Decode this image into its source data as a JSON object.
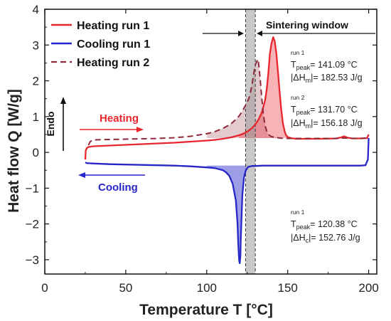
{
  "chart_data": {
    "type": "line",
    "xlabel": "Temperature T [°C]",
    "ylabel": "Heat flow Q [W/g]",
    "xlim": [
      0,
      205
    ],
    "ylim": [
      -3.4,
      4
    ],
    "x_ticks": [
      0,
      50,
      100,
      150,
      200
    ],
    "y_ticks": [
      -3,
      -2,
      -1,
      0,
      1,
      2,
      3,
      4
    ],
    "grid": false,
    "legend": {
      "placement": "top-left",
      "entries": [
        {
          "label": "Heating run 1",
          "color": "#e8262e",
          "style": "solid"
        },
        {
          "label": "Cooling run 1",
          "color": "#2727c9",
          "style": "solid"
        },
        {
          "label": "Heating run 2",
          "color": "#8e2a3a",
          "style": "dashed"
        }
      ]
    },
    "series": [
      {
        "name": "Heating run 1",
        "color": "#e8262e",
        "style": "solid",
        "x": [
          25,
          25.3,
          26,
          27,
          30,
          40,
          50,
          60,
          70,
          80,
          90,
          100,
          105,
          110,
          115,
          120,
          123,
          125,
          128,
          130,
          132,
          134,
          136,
          137,
          138,
          139,
          140,
          141.09,
          142,
          143,
          144,
          145,
          146,
          147,
          148,
          149,
          150,
          152,
          155,
          160,
          170,
          180,
          183,
          185,
          187,
          190,
          195,
          199,
          199.5,
          200
        ],
        "y": [
          -0.2,
          0.05,
          0.12,
          0.15,
          0.17,
          0.19,
          0.21,
          0.23,
          0.25,
          0.27,
          0.3,
          0.33,
          0.35,
          0.38,
          0.42,
          0.48,
          0.53,
          0.58,
          0.68,
          0.78,
          0.92,
          1.12,
          1.45,
          1.75,
          2.2,
          2.75,
          3.05,
          3.22,
          3.1,
          2.75,
          2.25,
          1.7,
          1.2,
          0.82,
          0.6,
          0.48,
          0.43,
          0.4,
          0.38,
          0.38,
          0.38,
          0.39,
          0.42,
          0.45,
          0.41,
          0.39,
          0.39,
          0.4,
          0.45,
          0.5
        ]
      },
      {
        "name": "Cooling run 1",
        "color": "#2727c9",
        "style": "solid",
        "x": [
          200,
          199.5,
          198,
          195,
          190,
          180,
          170,
          160,
          150,
          140,
          135,
          130,
          128,
          126,
          125,
          124,
          123,
          122,
          121.5,
          121,
          120.8,
          120.38,
          120,
          119.5,
          119,
          118,
          116,
          114,
          112,
          110,
          105,
          100,
          90,
          80,
          70,
          60,
          50,
          40,
          30,
          26,
          25
        ],
        "y": [
          0.4,
          -0.2,
          -0.36,
          -0.37,
          -0.37,
          -0.37,
          -0.37,
          -0.37,
          -0.37,
          -0.37,
          -0.37,
          -0.38,
          -0.38,
          -0.4,
          -0.44,
          -0.52,
          -0.7,
          -1.2,
          -1.8,
          -2.5,
          -2.9,
          -3.1,
          -3.02,
          -2.6,
          -2.0,
          -1.35,
          -0.88,
          -0.66,
          -0.56,
          -0.5,
          -0.44,
          -0.42,
          -0.39,
          -0.37,
          -0.36,
          -0.35,
          -0.34,
          -0.33,
          -0.31,
          -0.3,
          -0.28
        ]
      },
      {
        "name": "Heating run 2",
        "color": "#8e2a3a",
        "style": "dashed",
        "x": [
          27,
          28,
          30,
          40,
          50,
          60,
          70,
          80,
          90,
          100,
          105,
          110,
          115,
          118,
          120,
          122,
          124,
          126,
          127,
          128,
          129,
          130,
          131,
          131.7,
          132,
          133,
          134,
          135,
          136,
          137,
          138,
          140,
          145,
          150,
          160,
          170,
          180,
          184,
          186,
          190,
          195,
          199
        ],
        "y": [
          0.2,
          0.3,
          0.35,
          0.36,
          0.37,
          0.38,
          0.39,
          0.41,
          0.45,
          0.52,
          0.58,
          0.67,
          0.8,
          0.92,
          1.02,
          1.15,
          1.32,
          1.5,
          1.68,
          1.9,
          2.2,
          2.45,
          2.55,
          2.6,
          2.5,
          2.05,
          1.5,
          1.05,
          0.75,
          0.6,
          0.5,
          0.44,
          0.4,
          0.39,
          0.39,
          0.39,
          0.39,
          0.4,
          0.4,
          0.39,
          0.39,
          0.4
        ]
      }
    ],
    "annotations": {
      "sintering_window": {
        "label": "Sintering window",
        "x_range": [
          124,
          130
        ]
      },
      "endo_label": "Endo",
      "heating_label": "Heating",
      "cooling_label": "Cooling",
      "heat1": {
        "run": "run 1",
        "t_label": "T",
        "t_sub": "peak",
        "t_value": "= 141.09 °C",
        "h_label": "|ΔH",
        "h_sub": "m",
        "h_value": "|= 182.53 J/g"
      },
      "heat2": {
        "run": "run 2",
        "t_label": "T",
        "t_sub": "peak",
        "t_value": "= 131.70 °C",
        "h_label": "|ΔH",
        "h_sub": "m",
        "h_value": "|= 156.18 J/g"
      },
      "cool1": {
        "run": "run 1",
        "t_label": "T",
        "t_sub": "peak",
        "t_value": "= 120.38 °C",
        "h_label": "|ΔH",
        "h_sub": "c",
        "h_value": "|= 152.76 J/g"
      }
    }
  }
}
